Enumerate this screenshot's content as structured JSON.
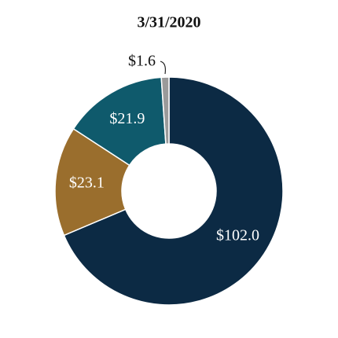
{
  "chart_data": {
    "type": "donut",
    "title": "3/31/2020",
    "categories": [
      null,
      null,
      null,
      null
    ],
    "values": [
      102.0,
      23.1,
      21.9,
      1.6
    ],
    "value_labels": [
      "$102.0",
      "$23.1",
      "$21.9",
      "$1.6"
    ],
    "colors": [
      "#0c2a44",
      "#9a6e2d",
      "#0f5a6c",
      "#9a9a9a"
    ]
  }
}
